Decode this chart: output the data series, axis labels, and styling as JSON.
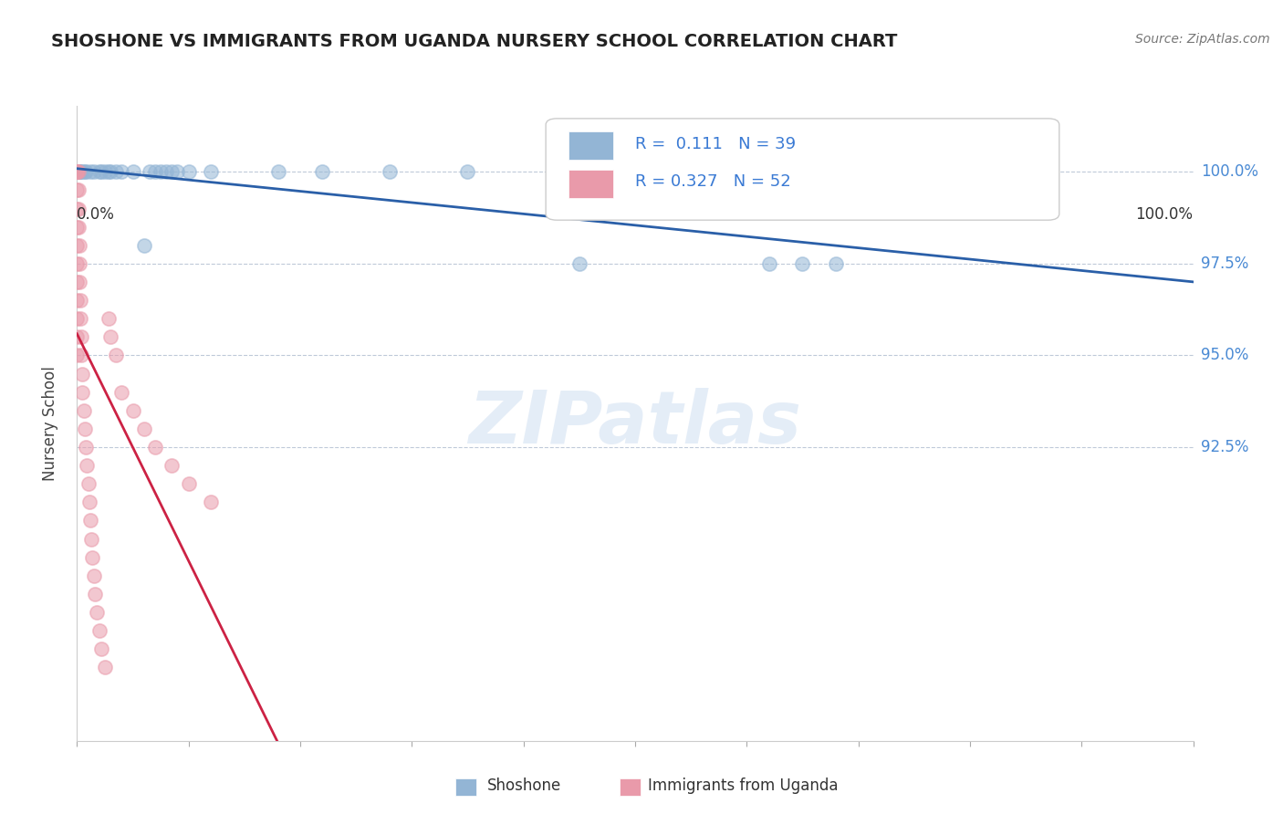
{
  "title": "SHOSHONE VS IMMIGRANTS FROM UGANDA NURSERY SCHOOL CORRELATION CHART",
  "source": "Source: ZipAtlas.com",
  "ylabel": "Nursery School",
  "watermark": "ZIPatlas",
  "legend_r_shoshone": "0.111",
  "legend_n_shoshone": "39",
  "legend_r_uganda": "0.327",
  "legend_n_uganda": "52",
  "shoshone_color": "#93b5d5",
  "uganda_color": "#e99aaa",
  "shoshone_line_color": "#2a5fa8",
  "uganda_line_color": "#cc2244",
  "background_color": "#ffffff",
  "ytick_positions": [
    0.925,
    0.95,
    0.975,
    1.0
  ],
  "ytick_labels": [
    "92.5%",
    "95.0%",
    "97.5%",
    "100.0%"
  ],
  "xlim": [
    0.0,
    1.0
  ],
  "ylim": [
    0.845,
    1.018
  ],
  "shoshone_x": [
    0.0,
    0.0,
    0.0,
    0.0,
    0.001,
    0.001,
    0.002,
    0.003,
    0.005,
    0.007,
    0.008,
    0.012,
    0.015,
    0.02,
    0.022,
    0.025,
    0.028,
    0.03,
    0.035,
    0.04,
    0.05,
    0.06,
    0.065,
    0.07,
    0.075,
    0.08,
    0.085,
    0.09,
    0.1,
    0.12,
    0.18,
    0.22,
    0.28,
    0.35,
    0.45,
    0.55,
    0.62,
    0.65,
    0.68
  ],
  "shoshone_y": [
    1.0,
    1.0,
    1.0,
    1.0,
    1.0,
    1.0,
    1.0,
    1.0,
    1.0,
    1.0,
    1.0,
    1.0,
    1.0,
    1.0,
    1.0,
    1.0,
    1.0,
    1.0,
    1.0,
    1.0,
    1.0,
    0.98,
    1.0,
    1.0,
    1.0,
    1.0,
    1.0,
    1.0,
    1.0,
    1.0,
    1.0,
    1.0,
    1.0,
    1.0,
    0.975,
    1.0,
    0.975,
    0.975,
    0.975
  ],
  "uganda_x": [
    0.0,
    0.0,
    0.0,
    0.0,
    0.0,
    0.0,
    0.0,
    0.0,
    0.0,
    0.0,
    0.0,
    0.0,
    0.0,
    0.0,
    0.001,
    0.001,
    0.001,
    0.001,
    0.002,
    0.002,
    0.002,
    0.003,
    0.003,
    0.004,
    0.004,
    0.005,
    0.005,
    0.006,
    0.007,
    0.008,
    0.009,
    0.01,
    0.011,
    0.012,
    0.013,
    0.014,
    0.015,
    0.016,
    0.018,
    0.02,
    0.022,
    0.025,
    0.028,
    0.03,
    0.035,
    0.04,
    0.05,
    0.06,
    0.07,
    0.085,
    0.1,
    0.12
  ],
  "uganda_y": [
    1.0,
    1.0,
    1.0,
    1.0,
    0.995,
    0.99,
    0.985,
    0.98,
    0.975,
    0.97,
    0.965,
    0.96,
    0.955,
    0.95,
    1.0,
    0.995,
    0.99,
    0.985,
    0.98,
    0.975,
    0.97,
    0.965,
    0.96,
    0.955,
    0.95,
    0.945,
    0.94,
    0.935,
    0.93,
    0.925,
    0.92,
    0.915,
    0.91,
    0.905,
    0.9,
    0.895,
    0.89,
    0.885,
    0.88,
    0.875,
    0.87,
    0.865,
    0.96,
    0.955,
    0.95,
    0.94,
    0.935,
    0.93,
    0.925,
    0.92,
    0.915,
    0.91
  ]
}
